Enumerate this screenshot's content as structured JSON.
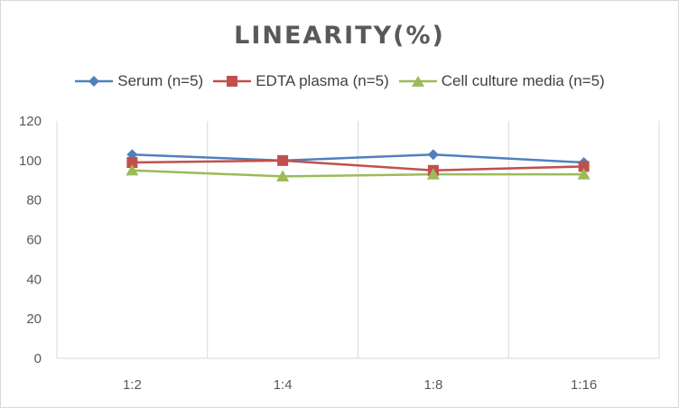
{
  "chart_data": {
    "type": "line",
    "title": "LINEARITY(%)",
    "xlabel": "",
    "ylabel": "",
    "categories": [
      "1:2",
      "1:4",
      "1:8",
      "1:16"
    ],
    "ylim": [
      0,
      120
    ],
    "yticks": [
      0,
      20,
      40,
      60,
      80,
      100,
      120
    ],
    "grid": "vertical",
    "legend_position": "top",
    "series": [
      {
        "name": "Serum (n=5)",
        "values": [
          103,
          100,
          103,
          99
        ],
        "color": "#4f81bd",
        "marker": "diamond"
      },
      {
        "name": "EDTA plasma (n=5)",
        "values": [
          99,
          100,
          95,
          97
        ],
        "color": "#c0504d",
        "marker": "square"
      },
      {
        "name": "Cell culture media (n=5)",
        "values": [
          95,
          92,
          93,
          93
        ],
        "color": "#9bbb59",
        "marker": "triangle"
      }
    ]
  }
}
